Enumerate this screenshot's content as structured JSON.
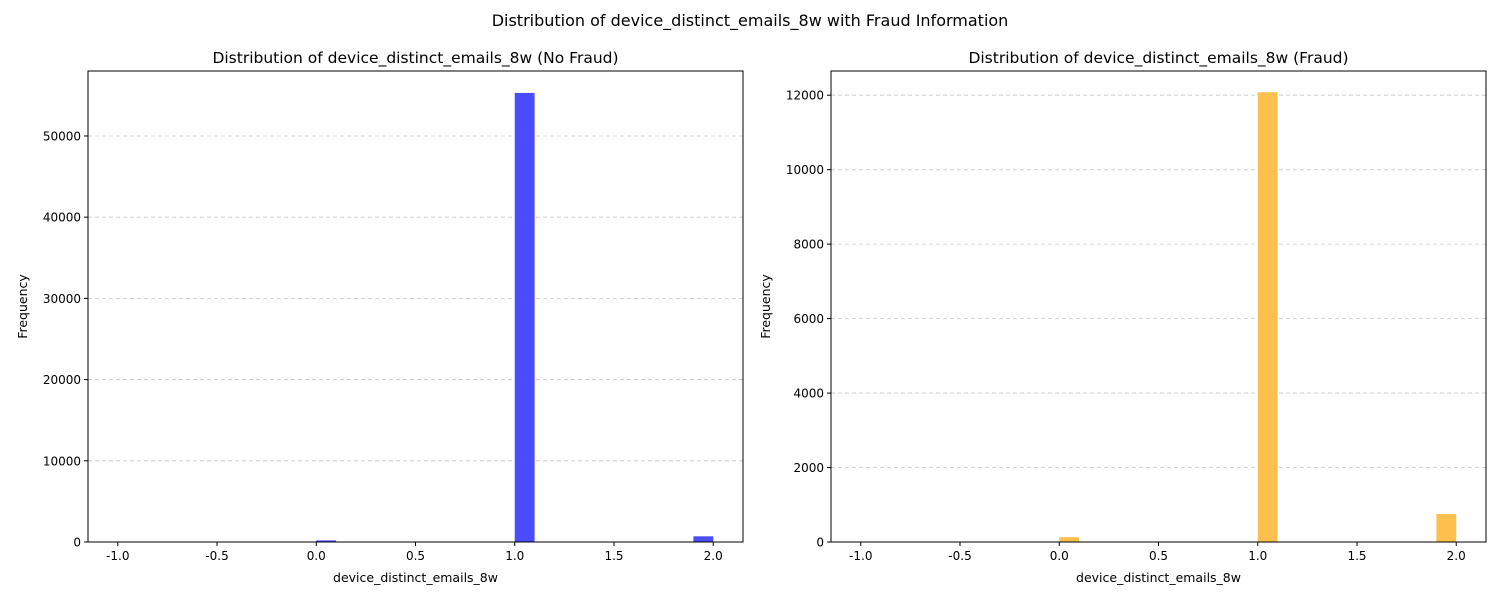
{
  "figure": {
    "suptitle": "Distribution of device_distinct_emails_8w with Fraud Information"
  },
  "chart_data": [
    {
      "type": "bar",
      "title": "Distribution of device_distinct_emails_8w (No Fraud)",
      "xlabel": "device_distinct_emails_8w",
      "ylabel": "Frequency",
      "xlim": [
        -1.15,
        2.15
      ],
      "ylim": [
        0,
        58000
      ],
      "xticks": [
        "-1.0",
        "-0.5",
        "0.0",
        "0.5",
        "1.0",
        "1.5",
        "2.0"
      ],
      "yticks": [
        "0",
        "10000",
        "20000",
        "30000",
        "40000",
        "50000"
      ],
      "grid": "y-dashed",
      "bars": [
        {
          "x": 0.05,
          "value": 200
        },
        {
          "x": 1.05,
          "value": 55300
        },
        {
          "x": 1.95,
          "value": 700
        }
      ],
      "bar_width": 0.1,
      "color": "#4b4bff"
    },
    {
      "type": "bar",
      "title": "Distribution of device_distinct_emails_8w (Fraud)",
      "xlabel": "device_distinct_emails_8w",
      "ylabel": "Frequency",
      "xlim": [
        -1.15,
        2.15
      ],
      "ylim": [
        0,
        12650
      ],
      "xticks": [
        "-1.0",
        "-0.5",
        "0.0",
        "0.5",
        "1.0",
        "1.5",
        "2.0"
      ],
      "yticks": [
        "0",
        "2000",
        "4000",
        "6000",
        "8000",
        "10000",
        "12000"
      ],
      "grid": "y-dashed",
      "bars": [
        {
          "x": 0.05,
          "value": 130
        },
        {
          "x": 1.05,
          "value": 12080
        },
        {
          "x": 1.95,
          "value": 750
        }
      ],
      "bar_width": 0.1,
      "color": "#fdbf4d"
    }
  ]
}
